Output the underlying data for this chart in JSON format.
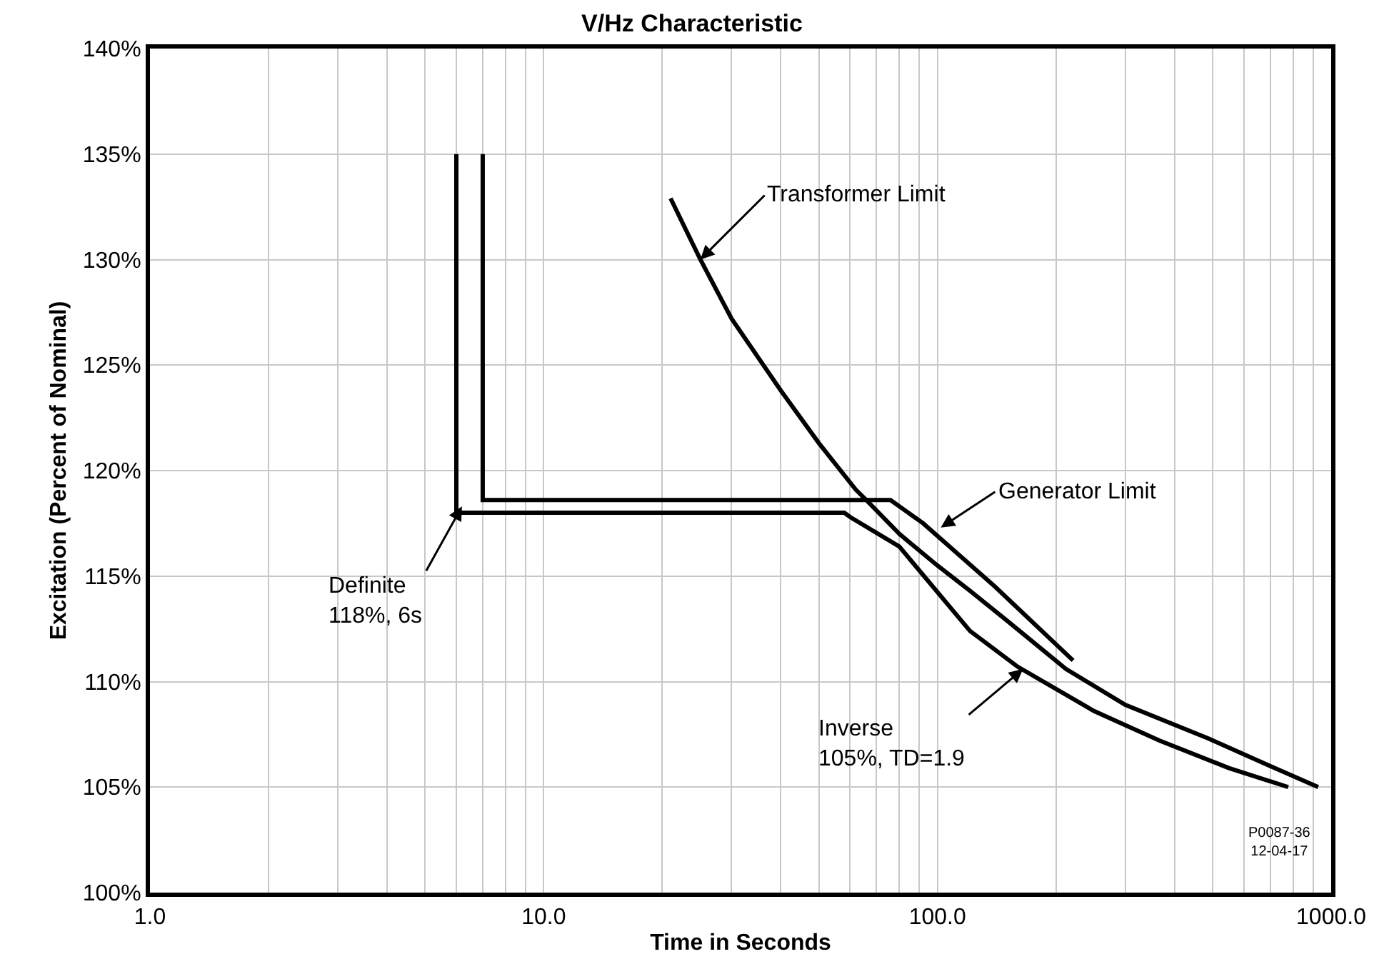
{
  "chart_data": {
    "type": "line",
    "title": "V/Hz Characteristic",
    "xlabel": "Time in Seconds",
    "ylabel": "Excitation (Percent of Nominal)",
    "log": "x",
    "grid": true,
    "marker": "none",
    "line_style": "solid",
    "xlim": [
      1,
      1000
    ],
    "xticks": [
      {
        "value": 1,
        "label": "1.0"
      },
      {
        "value": 2,
        "label": null
      },
      {
        "value": 3,
        "label": null
      },
      {
        "value": 4,
        "label": null
      },
      {
        "value": 5,
        "label": null
      },
      {
        "value": 6,
        "label": null
      },
      {
        "value": 7,
        "label": null
      },
      {
        "value": 8,
        "label": null
      },
      {
        "value": 9,
        "label": null
      },
      {
        "value": 10,
        "label": "10.0"
      },
      {
        "value": 20,
        "label": null
      },
      {
        "value": 30,
        "label": null
      },
      {
        "value": 40,
        "label": null
      },
      {
        "value": 50,
        "label": null
      },
      {
        "value": 60,
        "label": null
      },
      {
        "value": 70,
        "label": null
      },
      {
        "value": 80,
        "label": null
      },
      {
        "value": 90,
        "label": null
      },
      {
        "value": 100,
        "label": "100.0"
      },
      {
        "value": 200,
        "label": null
      },
      {
        "value": 300,
        "label": null
      },
      {
        "value": 400,
        "label": null
      },
      {
        "value": 500,
        "label": null
      },
      {
        "value": 600,
        "label": null
      },
      {
        "value": 700,
        "label": null
      },
      {
        "value": 800,
        "label": null
      },
      {
        "value": 900,
        "label": null
      },
      {
        "value": 1000,
        "label": "1000.0"
      }
    ],
    "ylim": [
      100,
      140
    ],
    "yticks": [
      {
        "value": 100,
        "label": "100%"
      },
      {
        "value": 105,
        "label": "105%"
      },
      {
        "value": 110,
        "label": "110%"
      },
      {
        "value": 115,
        "label": "115%"
      },
      {
        "value": 120,
        "label": "120%"
      },
      {
        "value": 125,
        "label": "125%"
      },
      {
        "value": 130,
        "label": "130%"
      },
      {
        "value": 135,
        "label": "135%"
      },
      {
        "value": 140,
        "label": "140%"
      }
    ],
    "series": [
      {
        "color": "#000000",
        "x": [
          21,
          25,
          30,
          40,
          50,
          62,
          66,
          80,
          100,
          121,
          150,
          212,
          300,
          488,
          700,
          927
        ],
        "values": [
          132.9,
          130.0,
          127.2,
          123.8,
          121.3,
          119.1,
          118.6,
          117.0,
          115.5,
          114.3,
          112.9,
          110.6,
          108.9,
          107.3,
          106.0,
          105.0
        ]
      },
      {
        "color": "#000000",
        "x": [
          7,
          7,
          76,
          92,
          140,
          221
        ],
        "values": [
          135,
          118.6,
          118.6,
          117.5,
          114.5,
          111.0
        ]
      },
      {
        "color": "#000000",
        "x": [
          6,
          6,
          58,
          60,
          80,
          121,
          160,
          250,
          367,
          550,
          778
        ],
        "values": [
          135,
          118,
          118,
          117.8,
          116.4,
          112.4,
          110.7,
          108.6,
          107.2,
          105.9,
          105.0
        ]
      }
    ],
    "annotations": [
      {
        "text": "Transformer Limit",
        "x": 25,
        "y": 130.0
      },
      {
        "text": "Generator Limit",
        "x": 102,
        "y": 117.3
      },
      {
        "text": "Definite\n118%, 6s",
        "x": 6.2,
        "y": 118.3
      },
      {
        "text": "Inverse\n105%, TD=1.9",
        "x": 165,
        "y": 110.6
      },
      "P0087-36\n12-04-17"
    ]
  }
}
